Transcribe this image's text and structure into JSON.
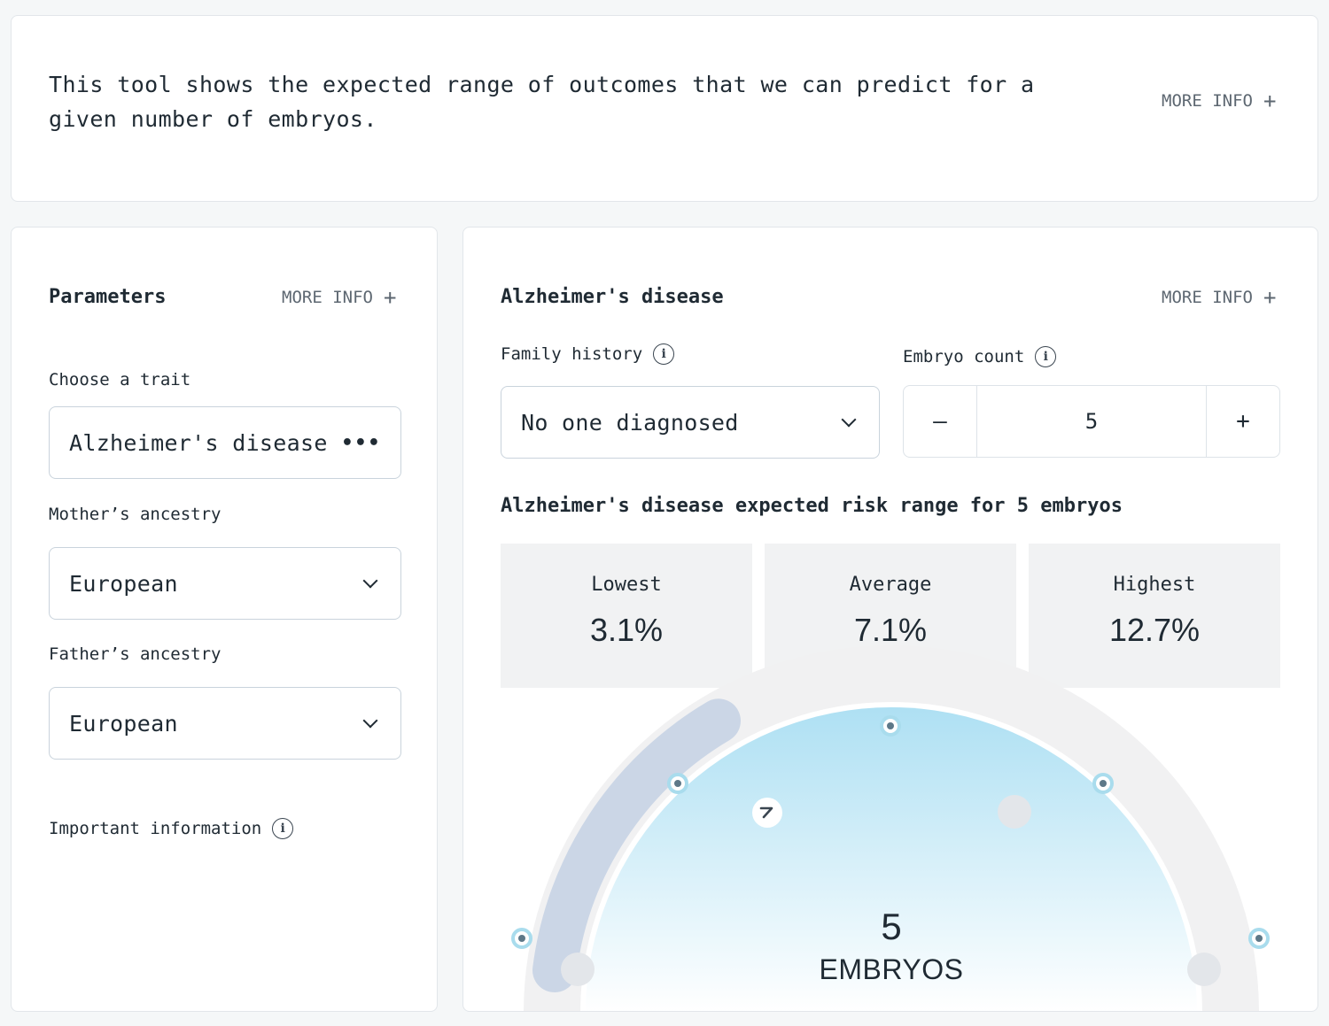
{
  "intro": {
    "text": "This tool shows the expected range of outcomes that we can predict for a given number of embryos.",
    "more_info": "MORE INFO"
  },
  "parameters": {
    "title": "Parameters",
    "more_info": "MORE INFO",
    "trait_label": "Choose a trait",
    "trait_value": "Alzheimer's disease",
    "mother_label": "Mother’s ancestry",
    "mother_value": "European",
    "father_label": "Father’s ancestry",
    "father_value": "European",
    "important_info": "Important information"
  },
  "result": {
    "title": "Alzheimer's disease",
    "more_info": "MORE INFO",
    "family_history_label": "Family history",
    "family_history_value": "No one diagnosed",
    "embryo_count_label": "Embryo count",
    "embryo_count_value": "5",
    "decrement": "–",
    "increment": "+",
    "range_title": "Alzheimer's disease expected risk range for 5 embryos",
    "stats": [
      {
        "label": "Lowest",
        "value": "3.1%"
      },
      {
        "label": "Average",
        "value": "7.1%"
      },
      {
        "label": "Highest",
        "value": "12.7%"
      }
    ],
    "gauge": {
      "count": "5",
      "unit": "EMBRYOS",
      "selected_fraction": 0.33
    }
  },
  "colors": {
    "accent_ring": "#a9dced",
    "track": "#f1f1f2",
    "selected_track": "#cbd6e6",
    "dome_top": "#aee0f3"
  },
  "icons": [
    "plus-icon",
    "info-icon",
    "chevron-down-icon",
    "more-dots-icon",
    "arrow-icon"
  ]
}
